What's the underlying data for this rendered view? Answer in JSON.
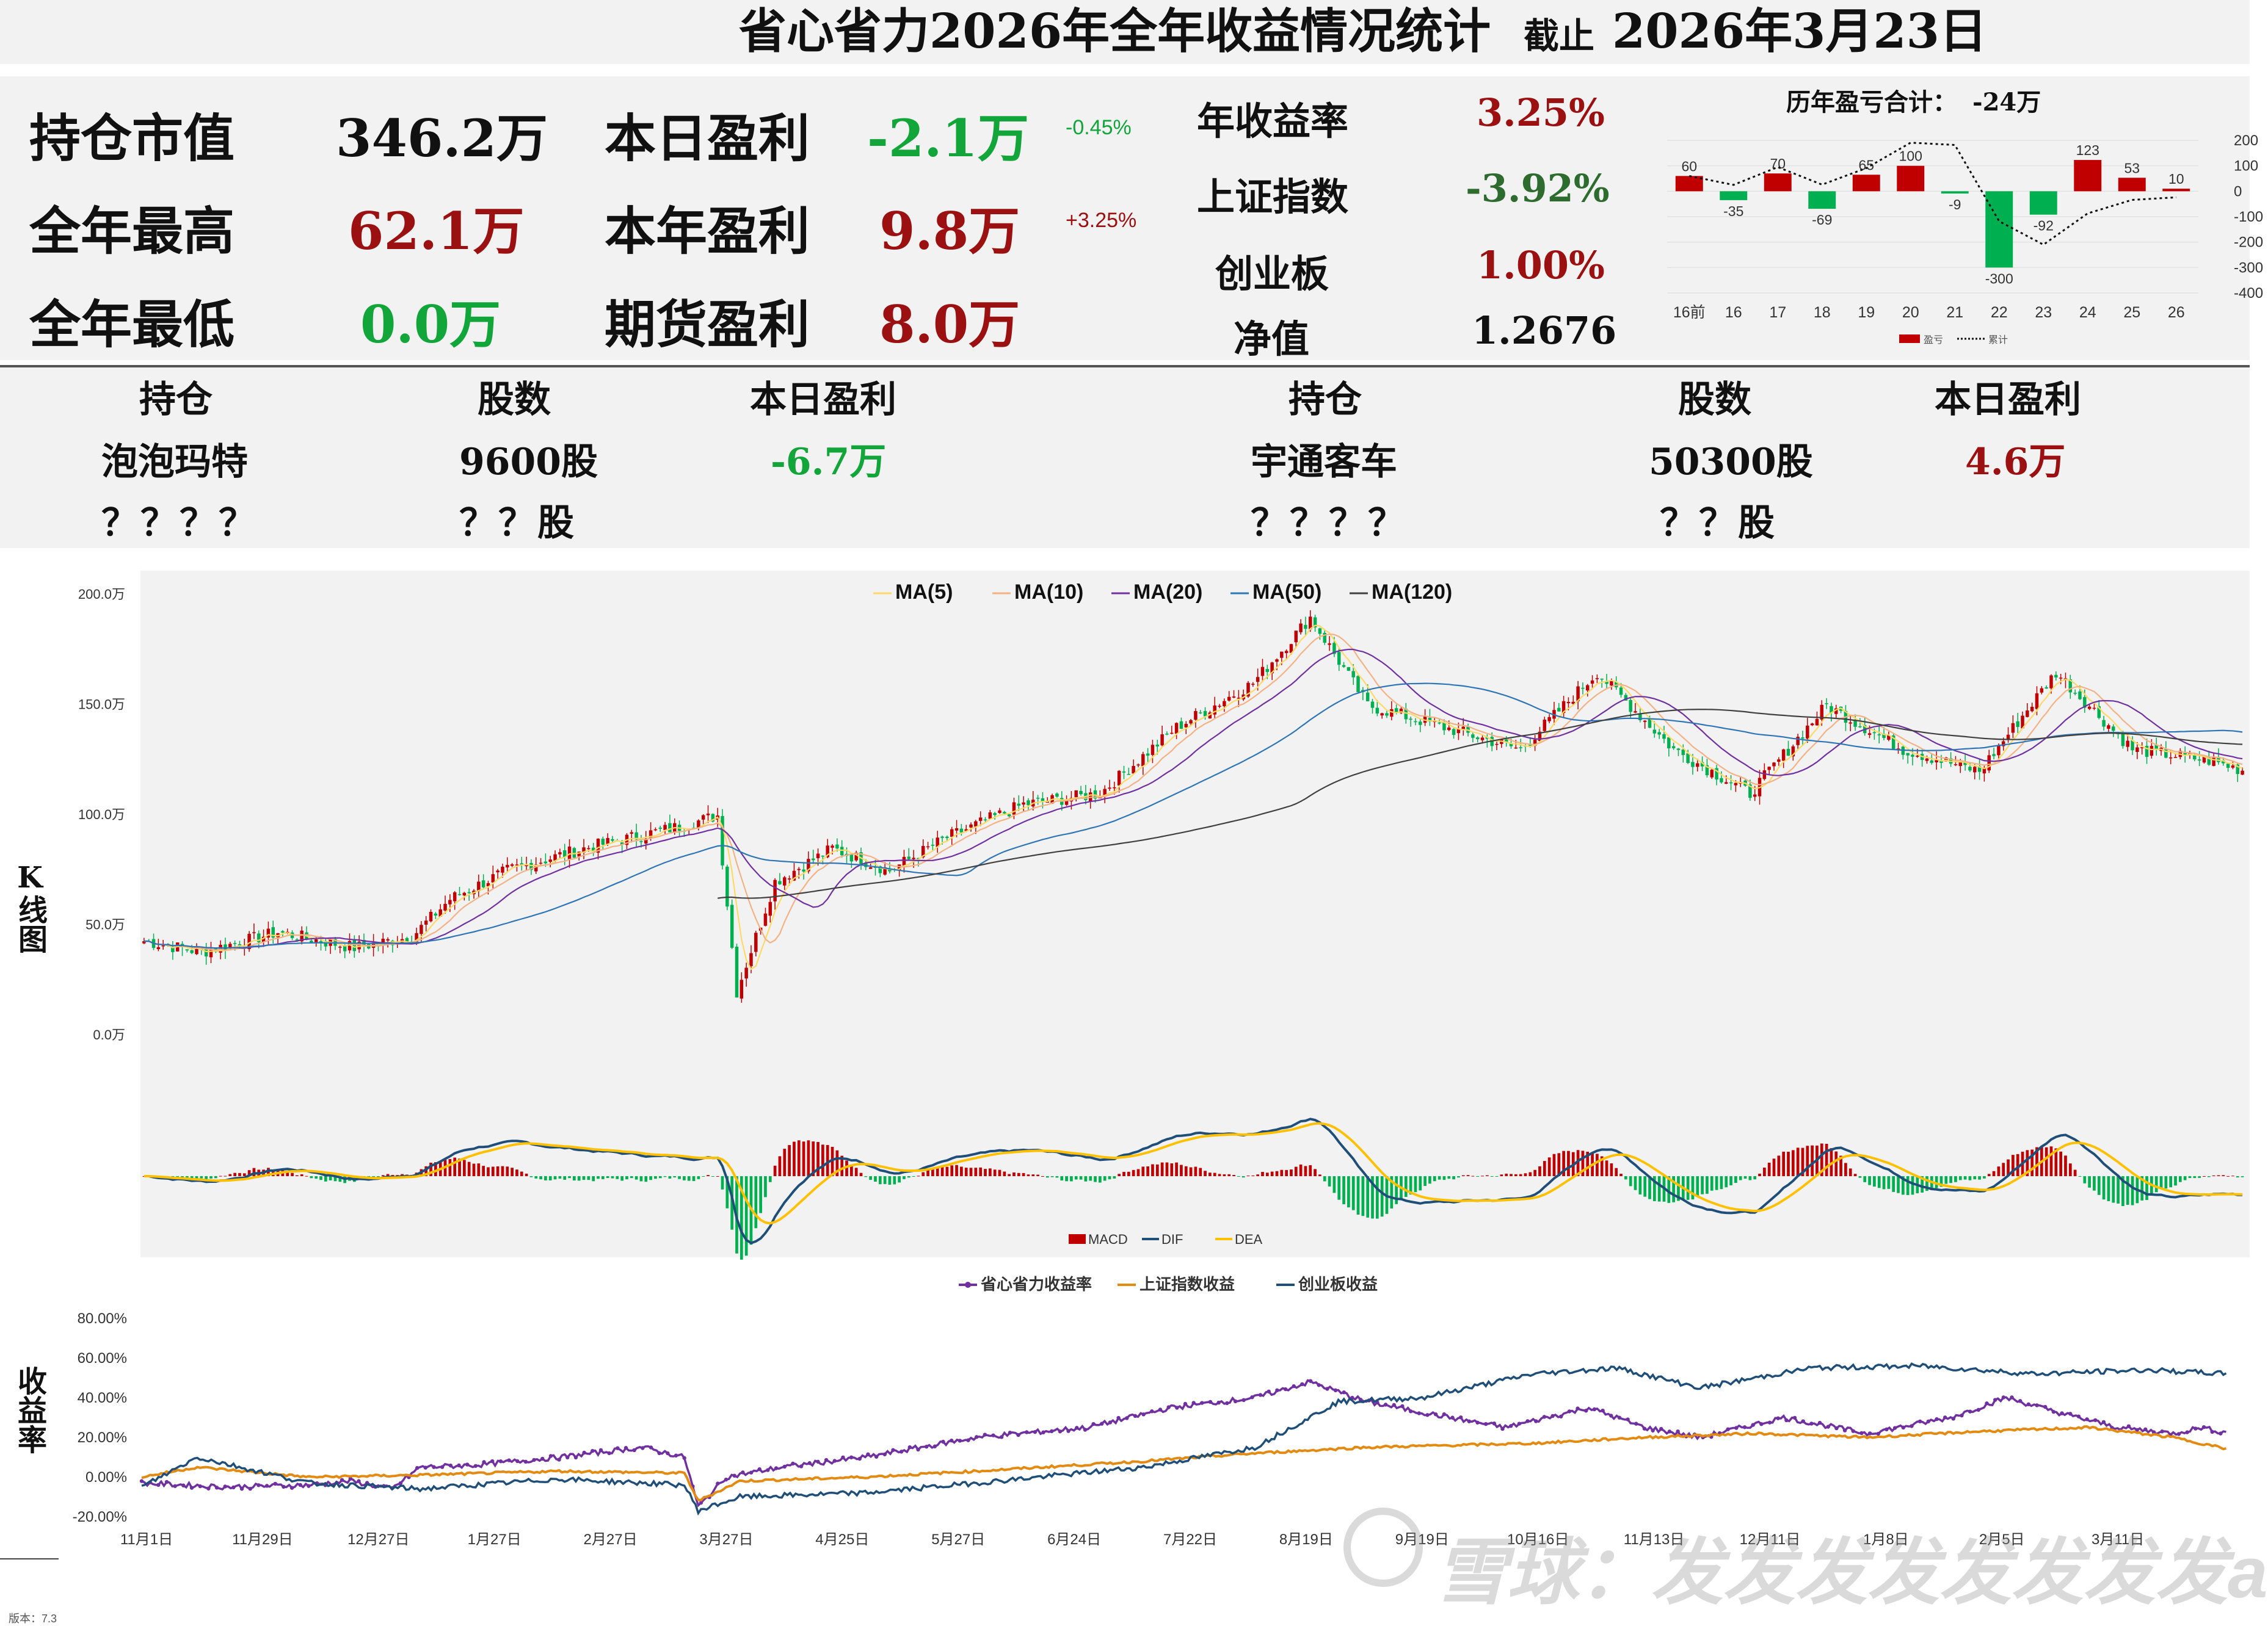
{
  "header": {
    "title": "省心省力2026年全年收益情况统计",
    "date_prefix": "截止",
    "date": "2026年3月23日"
  },
  "summary": {
    "market_value_label": "持仓市值",
    "market_value": "346.2万",
    "year_high_label": "全年最高",
    "year_high": "62.1万",
    "year_low_label": "全年最低",
    "year_low": "0.0万",
    "today_profit_label": "本日盈利",
    "today_profit": "-2.1万",
    "today_pct": "-0.45%",
    "year_profit_label": "本年盈利",
    "year_profit": "9.8万",
    "year_pct": "+3.25%",
    "futures_label": "期货盈利",
    "futures_profit": "8.0万",
    "annual_return_label": "年收益率",
    "annual_return": "3.25%",
    "sh_index_label": "上证指数",
    "sh_index": "-3.92%",
    "chinext_label": "创业板",
    "chinext": "1.00%",
    "nav_label": "净值",
    "nav": "1.2676"
  },
  "holdings": {
    "col_stock": "持仓",
    "col_shares": "股数",
    "col_profit": "本日盈利",
    "left": [
      {
        "name": "泡泡玛特",
        "shares": "9600股",
        "profit": "-6.7万"
      },
      {
        "name": "？？？？",
        "shares": "？？股",
        "profit": ""
      }
    ],
    "right": [
      {
        "name": "宇通客车",
        "shares": "50300股",
        "profit": "4.6万"
      },
      {
        "name": "？？？？",
        "shares": "？？股",
        "profit": ""
      }
    ]
  },
  "side_labels": {
    "kline": "K线图",
    "returns": "收益率"
  },
  "footer": {
    "version": "版本：7.3",
    "watermark": "雪球：发发发发发发发发a"
  },
  "colors": {
    "up": "#c00000",
    "down": "#00b050",
    "dif": "#1f4e79",
    "dea": "#ffc000",
    "portfolio": "#7030a0",
    "sh": "#e38a12",
    "cy": "#1f4e79"
  },
  "chart_data": [
    {
      "type": "bar",
      "title": "历年盈亏合计：",
      "title_value": "-24万",
      "categories": [
        "16前",
        "16",
        "17",
        "18",
        "19",
        "20",
        "21",
        "22",
        "23",
        "24",
        "25",
        "26"
      ],
      "series": [
        {
          "name": "盈亏",
          "values": [
            60,
            -35,
            70,
            -69,
            65,
            100,
            -9,
            -300,
            -92,
            123,
            53,
            10
          ]
        },
        {
          "name": "累计",
          "type": "line",
          "values": [
            60,
            25,
            95,
            26,
            91,
            191,
            182,
            -118,
            -210,
            -87,
            -34,
            -24
          ]
        }
      ],
      "ylim": [
        -400,
        200
      ],
      "yticks": [
        "200",
        "100",
        "0",
        "-100",
        "-200",
        "-300",
        "-400"
      ]
    },
    {
      "type": "candlestick",
      "yticks": [
        "200.0万",
        "150.0万",
        "100.0万",
        "50.0万",
        "0.0万"
      ],
      "ylim": [
        0,
        200
      ],
      "legend": [
        "MA(5)",
        "MA(10)",
        "MA(20)",
        "MA(50)",
        "MA(120)"
      ],
      "legend_colors": [
        "#ffd966",
        "#f4b183",
        "#7030a0",
        "#2e75b6",
        "#404040"
      ],
      "anchors": [
        [
          0,
          43
        ],
        [
          30,
          38
        ],
        [
          70,
          47
        ],
        [
          110,
          40
        ],
        [
          140,
          45
        ],
        [
          160,
          62
        ],
        [
          190,
          75
        ],
        [
          230,
          85
        ],
        [
          280,
          95
        ],
        [
          300,
          100
        ],
        [
          310,
          20
        ],
        [
          330,
          70
        ],
        [
          360,
          85
        ],
        [
          390,
          75
        ],
        [
          420,
          90
        ],
        [
          460,
          105
        ],
        [
          500,
          110
        ],
        [
          540,
          140
        ],
        [
          580,
          160
        ],
        [
          610,
          190
        ],
        [
          640,
          150
        ],
        [
          680,
          140
        ],
        [
          720,
          130
        ],
        [
          760,
          165
        ],
        [
          800,
          130
        ],
        [
          840,
          110
        ],
        [
          880,
          150
        ],
        [
          920,
          130
        ],
        [
          960,
          120
        ],
        [
          1000,
          165
        ],
        [
          1040,
          130
        ],
        [
          1080,
          125
        ],
        [
          1100,
          120
        ]
      ],
      "bars": 1100
    },
    {
      "type": "bar+line",
      "legend": [
        "MACD",
        "DIF",
        "DEA"
      ]
    },
    {
      "type": "line",
      "legend": [
        "省心省力收益率",
        "上证指数收益",
        "创业板收益"
      ],
      "yticks": [
        "80.00%",
        "60.00%",
        "40.00%",
        "20.00%",
        "0.00%",
        "-20.00%"
      ],
      "ylim": [
        -20,
        80
      ],
      "xticks": [
        "11月1日",
        "11月29日",
        "12月27日",
        "1月27日",
        "2月27日",
        "3月27日",
        "4月25日",
        "5月27日",
        "6月24日",
        "7月22日",
        "8月19日",
        "9月19日",
        "10月16日",
        "11月13日",
        "12月11日",
        "1月8日",
        "2月5日",
        "3月11日"
      ],
      "series": [
        {
          "name": "省心省力收益率",
          "anchors": [
            [
              0,
              -3
            ],
            [
              30,
              -5
            ],
            [
              60,
              -4
            ],
            [
              75,
              -2
            ],
            [
              90,
              -6
            ],
            [
              100,
              5
            ],
            [
              120,
              6
            ],
            [
              150,
              10
            ],
            [
              180,
              15
            ],
            [
              195,
              10
            ],
            [
              200,
              -15
            ],
            [
              210,
              0
            ],
            [
              230,
              5
            ],
            [
              260,
              10
            ],
            [
              300,
              20
            ],
            [
              340,
              25
            ],
            [
              370,
              35
            ],
            [
              400,
              40
            ],
            [
              420,
              48
            ],
            [
              440,
              38
            ],
            [
              470,
              30
            ],
            [
              490,
              25
            ],
            [
              520,
              35
            ],
            [
              540,
              25
            ],
            [
              560,
              20
            ],
            [
              590,
              30
            ],
            [
              620,
              22
            ],
            [
              650,
              30
            ],
            [
              670,
              40
            ],
            [
              690,
              32
            ],
            [
              710,
              25
            ],
            [
              730,
              22
            ],
            [
              740,
              25
            ],
            [
              750,
              22
            ]
          ]
        },
        {
          "name": "上证指数收益",
          "anchors": [
            [
              0,
              0
            ],
            [
              20,
              5
            ],
            [
              60,
              0
            ],
            [
              100,
              1
            ],
            [
              150,
              3
            ],
            [
              195,
              2
            ],
            [
              200,
              -12
            ],
            [
              215,
              -2
            ],
            [
              260,
              0
            ],
            [
              300,
              3
            ],
            [
              360,
              8
            ],
            [
              400,
              12
            ],
            [
              440,
              15
            ],
            [
              500,
              17
            ],
            [
              540,
              20
            ],
            [
              580,
              22
            ],
            [
              620,
              20
            ],
            [
              660,
              23
            ],
            [
              700,
              25
            ],
            [
              730,
              20
            ],
            [
              750,
              14
            ]
          ]
        },
        {
          "name": "创业板收益",
          "anchors": [
            [
              0,
              -5
            ],
            [
              20,
              10
            ],
            [
              60,
              -3
            ],
            [
              100,
              -6
            ],
            [
              150,
              -1
            ],
            [
              195,
              -4
            ],
            [
              200,
              -17
            ],
            [
              215,
              -10
            ],
            [
              260,
              -8
            ],
            [
              300,
              -3
            ],
            [
              360,
              5
            ],
            [
              400,
              15
            ],
            [
              430,
              38
            ],
            [
              460,
              40
            ],
            [
              500,
              52
            ],
            [
              530,
              55
            ],
            [
              560,
              45
            ],
            [
              600,
              55
            ],
            [
              640,
              56
            ],
            [
              680,
              52
            ],
            [
              720,
              54
            ],
            [
              750,
              52
            ]
          ]
        }
      ]
    }
  ]
}
